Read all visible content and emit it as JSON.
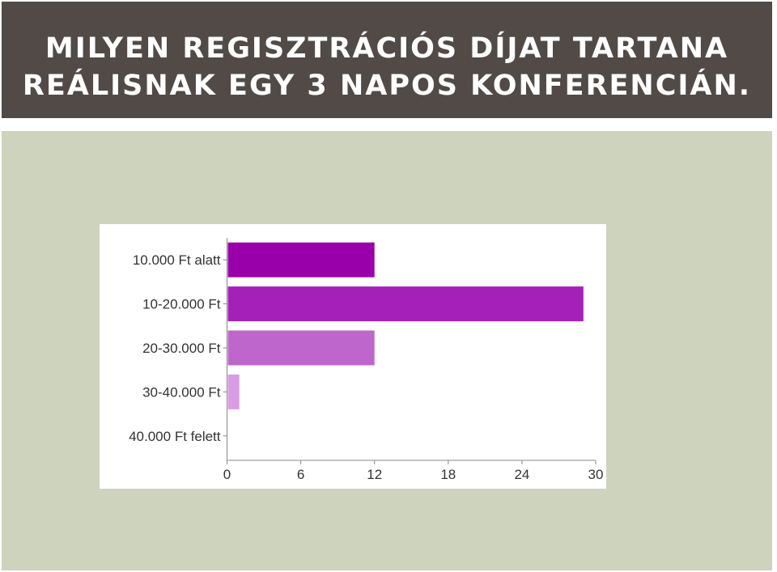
{
  "slide": {
    "title_line_1": "MILYEN REGISZTRÁCIÓS DÍJAT TARTANA",
    "title_line_2": "REÁLISNAK EGY 3 NAPOS KONFERENCIÁN.",
    "header_bg": "#524a47",
    "content_bg": "#ced3bd"
  },
  "chart_data": {
    "type": "bar",
    "orientation": "horizontal",
    "categories": [
      "10.000 Ft alatt",
      "10-20.000 Ft",
      "20-30.000 Ft",
      "30-40.000 Ft",
      "40.000 Ft felett"
    ],
    "values": [
      12,
      29,
      12,
      1,
      0
    ],
    "colors": [
      "#9900aa",
      "#a420b8",
      "#bf66cc",
      "#d89de4",
      "#eacdf0"
    ],
    "xlim": [
      0,
      30
    ],
    "xticks": [
      "0",
      "6",
      "12",
      "18",
      "24",
      "30"
    ],
    "grid": false
  }
}
